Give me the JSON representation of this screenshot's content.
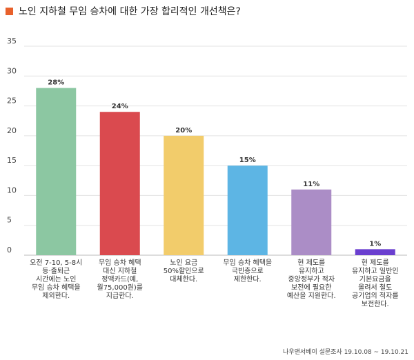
{
  "chart_data": {
    "type": "bar",
    "title": "노인 지하철 무임 승차에 대한 가장 합리적인 개선책은?",
    "xlabel": "",
    "ylabel": "",
    "ylim": [
      0,
      35
    ],
    "yticks": [
      0,
      5,
      10,
      15,
      20,
      25,
      30,
      35
    ],
    "grid": true,
    "categories": [
      [
        "오전 7-10, 5-8시",
        "등·출퇴근",
        "시간에는 노인",
        "무임 승차 혜택을",
        "제외한다."
      ],
      [
        "무임 승차 혜택",
        "대신 지하철",
        "정액카드(예,",
        "월75,000원)를",
        "지급한다."
      ],
      [
        "노인 요금",
        "50%할인으로",
        "대체한다."
      ],
      [
        "무임 승차 혜택을",
        "극빈층으로",
        "제한한다."
      ],
      [
        "현 제도를",
        "유지하고",
        "중앙정부가 적자",
        "보전에 필요한",
        "예산을 지원한다."
      ],
      [
        "현 제도를",
        "유지하고 일반인",
        "기본요금을",
        "올려서 철도",
        "공기업의 적자를",
        "보전한다."
      ]
    ],
    "values": [
      28,
      24,
      20,
      15,
      11,
      1
    ],
    "value_labels": [
      "28%",
      "24%",
      "20%",
      "15%",
      "11%",
      "1%"
    ],
    "colors": [
      "#8cc7a2",
      "#da4a4f",
      "#f2cc6b",
      "#5db5e4",
      "#ab8dc6",
      "#6a3fcf"
    ]
  },
  "source": "나우앤서베이 설문조사 19.10.08 ~ 19.10.21",
  "colors": {
    "title_marker": "#e8612c"
  }
}
